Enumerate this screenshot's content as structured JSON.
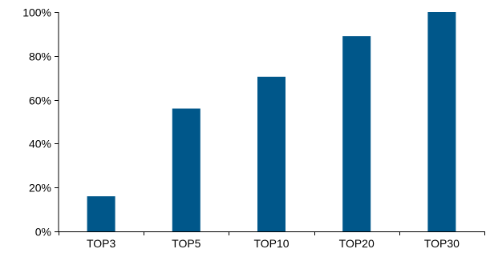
{
  "chart_data": {
    "type": "bar",
    "title": "",
    "xlabel": "",
    "ylabel": "",
    "categories": [
      "TOP3",
      "TOP5",
      "TOP10",
      "TOP20",
      "TOP30"
    ],
    "values": [
      16,
      56,
      70.5,
      89,
      100
    ],
    "ylim": [
      0,
      100
    ],
    "yticks": [
      0,
      20,
      40,
      60,
      80,
      100
    ],
    "ytick_labels": [
      "0%",
      "20%",
      "40%",
      "60%",
      "80%",
      "100%"
    ],
    "bar_color": "#00578a",
    "grid": false,
    "legend": "none"
  }
}
